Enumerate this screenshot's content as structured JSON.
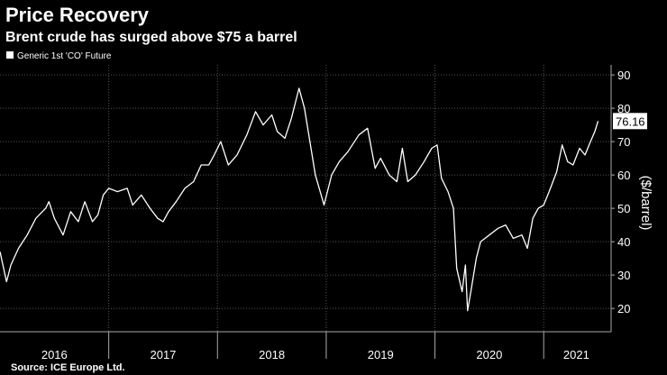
{
  "chart_data": {
    "type": "line",
    "title": "Price Recovery",
    "subtitle": "Brent crude has surged above $75 a barrel",
    "ylabel": "($/barrel)",
    "source": "Source: ICE Europe Ltd.",
    "legend": "top-left",
    "grid": true,
    "xlim": [
      2016,
      2021.62
    ],
    "xticks": [
      {
        "value": 2016.5,
        "label": "2016"
      },
      {
        "value": 2017.5,
        "label": "2017"
      },
      {
        "value": 2018.5,
        "label": "2018"
      },
      {
        "value": 2019.5,
        "label": "2019"
      },
      {
        "value": 2020.5,
        "label": "2020"
      },
      {
        "value": 2021.3,
        "label": "2021"
      }
    ],
    "xgrid": [
      2017,
      2018,
      2019,
      2020,
      2021
    ],
    "ylim": [
      13,
      93
    ],
    "yticks": [
      20,
      30,
      40,
      50,
      60,
      70,
      80,
      90
    ],
    "x": [
      2016.0,
      2016.06,
      2016.1,
      2016.17,
      2016.25,
      2016.33,
      2016.42,
      2016.45,
      2016.5,
      2016.58,
      2016.65,
      2016.72,
      2016.78,
      2016.85,
      2016.9,
      2016.95,
      2017.0,
      2017.08,
      2017.17,
      2017.22,
      2017.3,
      2017.38,
      2017.45,
      2017.5,
      2017.55,
      2017.62,
      2017.7,
      2017.78,
      2017.85,
      2017.92,
      2017.97,
      2018.03,
      2018.1,
      2018.18,
      2018.27,
      2018.35,
      2018.42,
      2018.5,
      2018.55,
      2018.62,
      2018.68,
      2018.75,
      2018.8,
      2018.85,
      2018.9,
      2018.98,
      2019.05,
      2019.12,
      2019.2,
      2019.3,
      2019.38,
      2019.45,
      2019.5,
      2019.58,
      2019.65,
      2019.7,
      2019.75,
      2019.82,
      2019.9,
      2019.97,
      2020.02,
      2020.06,
      2020.12,
      2020.17,
      2020.2,
      2020.25,
      2020.28,
      2020.3,
      2020.33,
      2020.38,
      2020.42,
      2020.5,
      2020.58,
      2020.65,
      2020.72,
      2020.8,
      2020.85,
      2020.9,
      2020.95,
      2021.0,
      2021.05,
      2021.12,
      2021.17,
      2021.22,
      2021.27,
      2021.33,
      2021.38,
      2021.43,
      2021.47,
      2021.5
    ],
    "series": [
      {
        "name": "Generic 1st 'CO' Future",
        "color": "#ffffff",
        "values": [
          37,
          28,
          33,
          38,
          42,
          47,
          50,
          52,
          47,
          42,
          49,
          46,
          52,
          46,
          48,
          54,
          56,
          55,
          56,
          51,
          54,
          50,
          47,
          46,
          49,
          52,
          56,
          58,
          63,
          63,
          66,
          70,
          63,
          66,
          72,
          79,
          75,
          78,
          73,
          71,
          77,
          86,
          80,
          70,
          60,
          51,
          60,
          64,
          67,
          72,
          74,
          62,
          65,
          60,
          58,
          68,
          58,
          60,
          64,
          68,
          69,
          59,
          55,
          50,
          32,
          25,
          33,
          19.3,
          25,
          35,
          40,
          42,
          44,
          45,
          41,
          42,
          38,
          47,
          50,
          51,
          55,
          61,
          69,
          64,
          63,
          68,
          66,
          70,
          73,
          76.16
        ]
      }
    ]
  }
}
